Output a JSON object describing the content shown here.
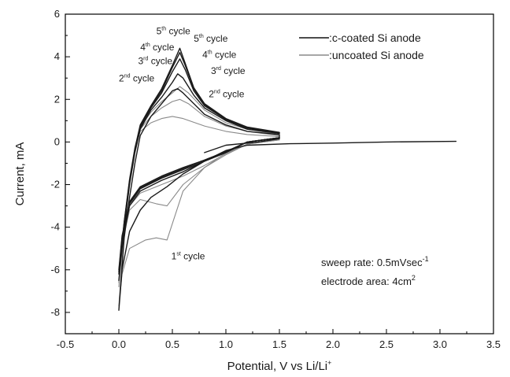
{
  "chart_data": {
    "type": "line",
    "title": "",
    "xlabel": "Potential, V vs Li/Li",
    "xlabel_sup": "+",
    "ylabel": "Current, mA",
    "xlim": [
      -0.5,
      3.5
    ],
    "ylim": [
      -9,
      6
    ],
    "x_ticks": [
      -0.5,
      0.0,
      0.5,
      1.0,
      1.5,
      2.0,
      2.5,
      3.0,
      3.5
    ],
    "x_tick_labels": [
      "-0.5",
      "0.0",
      "0.5",
      "1.0",
      "1.5",
      "2.0",
      "2.5",
      "3.0",
      "3.5"
    ],
    "y_ticks": [
      -8,
      -6,
      -4,
      -2,
      0,
      2,
      4,
      6
    ],
    "y_tick_labels": [
      "-8",
      "-6",
      "-4",
      "-2",
      "0",
      "2",
      "4",
      "6"
    ],
    "grid": false,
    "legend_position": "top-right",
    "legend": [
      {
        "label": ":c-coated Si anode",
        "color": "#111111"
      },
      {
        "label": ":uncoated Si anode",
        "color": "#8a8a8a"
      }
    ],
    "series": [
      {
        "name": "c-coated Si anode",
        "cycle": "1st",
        "color": "#1a1a1a",
        "points": [
          [
            3.15,
            0.03
          ],
          [
            2.5,
            0.0
          ],
          [
            2.0,
            -0.05
          ],
          [
            1.6,
            -0.08
          ],
          [
            1.2,
            -0.15
          ],
          [
            1.0,
            -0.4
          ],
          [
            0.8,
            -0.9
          ],
          [
            0.6,
            -1.5
          ],
          [
            0.45,
            -2.1
          ],
          [
            0.3,
            -2.6
          ],
          [
            0.2,
            -3.2
          ],
          [
            0.1,
            -4.2
          ],
          [
            0.03,
            -6.0
          ],
          [
            0.0,
            -7.9
          ],
          [
            0.05,
            -4.5
          ],
          [
            0.1,
            -2.6
          ],
          [
            0.15,
            -1.0
          ],
          [
            0.2,
            0.3
          ],
          [
            0.3,
            1.2
          ],
          [
            0.4,
            1.8
          ],
          [
            0.5,
            2.4
          ],
          [
            0.55,
            2.5
          ],
          [
            0.6,
            2.3
          ],
          [
            0.8,
            1.3
          ],
          [
            1.0,
            0.8
          ],
          [
            1.2,
            0.5
          ],
          [
            1.5,
            0.35
          ],
          [
            1.5,
            0.15
          ],
          [
            1.3,
            0.0
          ],
          [
            1.0,
            -0.15
          ],
          [
            0.8,
            -0.5
          ]
        ]
      },
      {
        "name": "c-coated Si anode",
        "cycle": "2nd",
        "color": "#1a1a1a",
        "points": [
          [
            1.5,
            0.2
          ],
          [
            1.2,
            0.0
          ],
          [
            1.0,
            -0.5
          ],
          [
            0.8,
            -0.9
          ],
          [
            0.6,
            -1.4
          ],
          [
            0.4,
            -1.8
          ],
          [
            0.2,
            -2.3
          ],
          [
            0.1,
            -3.0
          ],
          [
            0.03,
            -4.8
          ],
          [
            0.0,
            -6.5
          ],
          [
            0.05,
            -4.0
          ],
          [
            0.1,
            -2.0
          ],
          [
            0.15,
            -0.5
          ],
          [
            0.2,
            0.6
          ],
          [
            0.3,
            1.5
          ],
          [
            0.4,
            2.1
          ],
          [
            0.5,
            2.8
          ],
          [
            0.55,
            3.2
          ],
          [
            0.6,
            3.0
          ],
          [
            0.7,
            2.2
          ],
          [
            0.8,
            1.6
          ],
          [
            1.0,
            1.0
          ],
          [
            1.2,
            0.6
          ],
          [
            1.5,
            0.4
          ]
        ]
      },
      {
        "name": "c-coated Si anode",
        "cycle": "3rd",
        "color": "#1a1a1a",
        "points": [
          [
            1.5,
            0.2
          ],
          [
            1.2,
            0.0
          ],
          [
            1.0,
            -0.5
          ],
          [
            0.8,
            -0.9
          ],
          [
            0.6,
            -1.3
          ],
          [
            0.4,
            -1.7
          ],
          [
            0.2,
            -2.2
          ],
          [
            0.1,
            -2.9
          ],
          [
            0.03,
            -4.6
          ],
          [
            0.0,
            -6.2
          ],
          [
            0.05,
            -3.9
          ],
          [
            0.1,
            -1.9
          ],
          [
            0.15,
            -0.4
          ],
          [
            0.2,
            0.7
          ],
          [
            0.3,
            1.6
          ],
          [
            0.4,
            2.3
          ],
          [
            0.5,
            3.3
          ],
          [
            0.57,
            3.9
          ],
          [
            0.62,
            3.4
          ],
          [
            0.7,
            2.4
          ],
          [
            0.8,
            1.7
          ],
          [
            1.0,
            1.05
          ],
          [
            1.2,
            0.65
          ],
          [
            1.5,
            0.42
          ]
        ]
      },
      {
        "name": "c-coated Si anode",
        "cycle": "4th",
        "color": "#1a1a1a",
        "points": [
          [
            1.5,
            0.2
          ],
          [
            1.2,
            0.0
          ],
          [
            1.0,
            -0.45
          ],
          [
            0.8,
            -0.85
          ],
          [
            0.6,
            -1.25
          ],
          [
            0.4,
            -1.65
          ],
          [
            0.2,
            -2.15
          ],
          [
            0.1,
            -2.85
          ],
          [
            0.03,
            -4.5
          ],
          [
            0.0,
            -6.1
          ],
          [
            0.05,
            -3.8
          ],
          [
            0.1,
            -1.85
          ],
          [
            0.15,
            -0.35
          ],
          [
            0.2,
            0.75
          ],
          [
            0.3,
            1.65
          ],
          [
            0.4,
            2.4
          ],
          [
            0.5,
            3.5
          ],
          [
            0.57,
            4.2
          ],
          [
            0.62,
            3.6
          ],
          [
            0.7,
            2.5
          ],
          [
            0.8,
            1.75
          ],
          [
            1.0,
            1.08
          ],
          [
            1.2,
            0.68
          ],
          [
            1.5,
            0.43
          ]
        ]
      },
      {
        "name": "c-coated Si anode",
        "cycle": "5th",
        "color": "#1a1a1a",
        "points": [
          [
            1.5,
            0.2
          ],
          [
            1.2,
            0.0
          ],
          [
            1.0,
            -0.45
          ],
          [
            0.8,
            -0.85
          ],
          [
            0.6,
            -1.2
          ],
          [
            0.4,
            -1.6
          ],
          [
            0.2,
            -2.1
          ],
          [
            0.1,
            -2.8
          ],
          [
            0.03,
            -4.4
          ],
          [
            0.0,
            -6.0
          ],
          [
            0.05,
            -3.75
          ],
          [
            0.1,
            -1.8
          ],
          [
            0.15,
            -0.3
          ],
          [
            0.2,
            0.8
          ],
          [
            0.3,
            1.7
          ],
          [
            0.4,
            2.5
          ],
          [
            0.5,
            3.6
          ],
          [
            0.57,
            4.4
          ],
          [
            0.62,
            3.7
          ],
          [
            0.7,
            2.55
          ],
          [
            0.8,
            1.8
          ],
          [
            1.0,
            1.1
          ],
          [
            1.2,
            0.7
          ],
          [
            1.5,
            0.45
          ]
        ]
      },
      {
        "name": "uncoated Si anode",
        "cycle": "1st",
        "color": "#8a8a8a",
        "points": [
          [
            1.5,
            0.1
          ],
          [
            1.2,
            -0.1
          ],
          [
            1.0,
            -0.5
          ],
          [
            0.8,
            -1.2
          ],
          [
            0.6,
            -2.3
          ],
          [
            0.45,
            -4.6
          ],
          [
            0.35,
            -4.5
          ],
          [
            0.25,
            -4.6
          ],
          [
            0.1,
            -5.0
          ],
          [
            0.03,
            -6.2
          ],
          [
            0.0,
            -7.7
          ],
          [
            0.05,
            -4.2
          ],
          [
            0.1,
            -2.0
          ],
          [
            0.15,
            -0.4
          ],
          [
            0.2,
            0.5
          ],
          [
            0.3,
            0.9
          ],
          [
            0.4,
            1.1
          ],
          [
            0.5,
            1.2
          ],
          [
            0.6,
            1.1
          ],
          [
            0.8,
            0.75
          ],
          [
            1.0,
            0.5
          ],
          [
            1.2,
            0.35
          ],
          [
            1.5,
            0.25
          ]
        ]
      },
      {
        "name": "uncoated Si anode",
        "cycle": "2nd",
        "color": "#8a8a8a",
        "points": [
          [
            1.5,
            0.1
          ],
          [
            1.2,
            -0.1
          ],
          [
            1.0,
            -0.6
          ],
          [
            0.8,
            -1.2
          ],
          [
            0.6,
            -2.0
          ],
          [
            0.45,
            -3.0
          ],
          [
            0.35,
            -2.9
          ],
          [
            0.2,
            -2.7
          ],
          [
            0.1,
            -3.2
          ],
          [
            0.03,
            -4.8
          ],
          [
            0.0,
            -6.8
          ],
          [
            0.05,
            -3.8
          ],
          [
            0.1,
            -1.8
          ],
          [
            0.15,
            -0.3
          ],
          [
            0.2,
            0.6
          ],
          [
            0.3,
            1.2
          ],
          [
            0.4,
            1.6
          ],
          [
            0.5,
            1.9
          ],
          [
            0.57,
            2.0
          ],
          [
            0.65,
            1.8
          ],
          [
            0.8,
            1.2
          ],
          [
            1.0,
            0.75
          ],
          [
            1.2,
            0.5
          ],
          [
            1.5,
            0.3
          ]
        ]
      },
      {
        "name": "uncoated Si anode",
        "cycle": "3rd+",
        "color": "#8a8a8a",
        "points": [
          [
            1.5,
            0.1
          ],
          [
            1.2,
            -0.1
          ],
          [
            1.0,
            -0.55
          ],
          [
            0.8,
            -1.1
          ],
          [
            0.6,
            -1.6
          ],
          [
            0.4,
            -2.0
          ],
          [
            0.2,
            -2.4
          ],
          [
            0.1,
            -3.0
          ],
          [
            0.03,
            -4.6
          ],
          [
            0.0,
            -6.6
          ],
          [
            0.05,
            -3.7
          ],
          [
            0.1,
            -1.7
          ],
          [
            0.15,
            -0.25
          ],
          [
            0.2,
            0.7
          ],
          [
            0.3,
            1.4
          ],
          [
            0.4,
            1.9
          ],
          [
            0.5,
            2.3
          ],
          [
            0.57,
            2.6
          ],
          [
            0.65,
            2.3
          ],
          [
            0.8,
            1.5
          ],
          [
            1.0,
            0.9
          ],
          [
            1.2,
            0.6
          ],
          [
            1.5,
            0.35
          ]
        ]
      }
    ],
    "annotations": [
      {
        "base": "5",
        "sup": "th",
        "rest": " cycle",
        "x": 0.35,
        "y": 5.05
      },
      {
        "base": "4",
        "sup": "th",
        "rest": " cycle",
        "x": 0.2,
        "y": 4.3
      },
      {
        "base": "3",
        "sup": "rd",
        "rest": " cycle",
        "x": 0.18,
        "y": 3.65
      },
      {
        "base": "2",
        "sup": "nd",
        "rest": " cycle",
        "x": 0.0,
        "y": 2.85
      },
      {
        "base": "5",
        "sup": "th",
        "rest": " cycle",
        "x": 0.7,
        "y": 4.7
      },
      {
        "base": "4",
        "sup": "th",
        "rest": " cycle",
        "x": 0.78,
        "y": 3.95
      },
      {
        "base": "3",
        "sup": "rd",
        "rest": " cycle",
        "x": 0.86,
        "y": 3.2
      },
      {
        "base": "2",
        "sup": "nd",
        "rest": " cycle",
        "x": 0.84,
        "y": 2.1
      },
      {
        "base": "1",
        "sup": "st",
        "rest": " cycle",
        "x": 0.49,
        "y": -5.5
      }
    ],
    "notes": [
      {
        "text": "sweep rate: 0.5mVsec",
        "sup": "-1"
      },
      {
        "text": "electrode area: 4cm",
        "sup": "2"
      }
    ]
  }
}
